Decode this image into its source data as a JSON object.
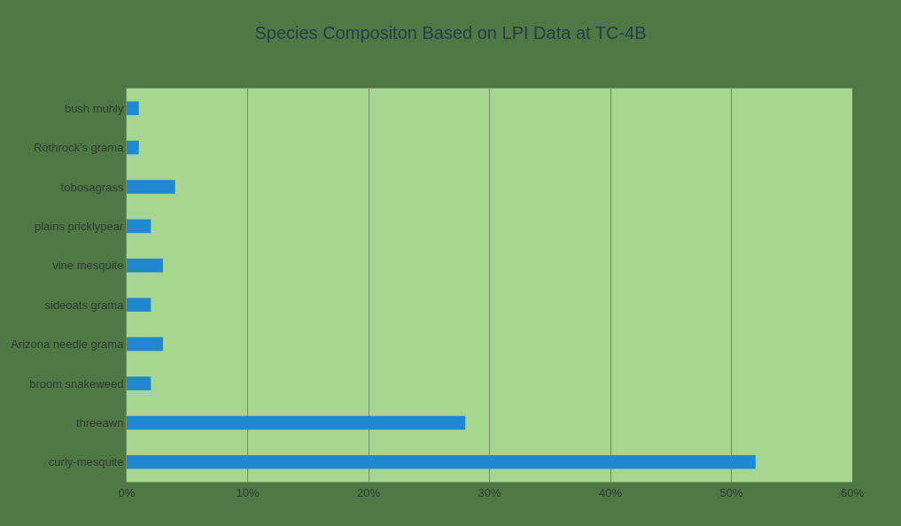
{
  "chart_data": {
    "type": "bar",
    "orientation": "horizontal",
    "title": "Species Compositon Based on LPI Data at TC-4B",
    "categories": [
      "bush muhly",
      "Rothrock's grama",
      "tobosagrass",
      "plains pricklypear",
      "vine mesquite",
      "sideoats grama",
      "Arizona needle grama",
      "broom snakeweed",
      "threeawn",
      "curly-mesquite"
    ],
    "values": [
      1,
      1,
      4,
      2,
      3,
      2,
      3,
      2,
      28,
      52
    ],
    "color": "#1e88d0",
    "xlim": [
      0,
      60
    ],
    "xticks": [
      {
        "value": 0,
        "label": "0%"
      },
      {
        "value": 10,
        "label": "10%"
      },
      {
        "value": 20,
        "label": "20%"
      },
      {
        "value": 30,
        "label": "30%"
      },
      {
        "value": 40,
        "label": "40%"
      },
      {
        "value": 50,
        "label": "50%"
      },
      {
        "value": 60,
        "label": "60%"
      }
    ],
    "grid": "x",
    "legend": false
  }
}
